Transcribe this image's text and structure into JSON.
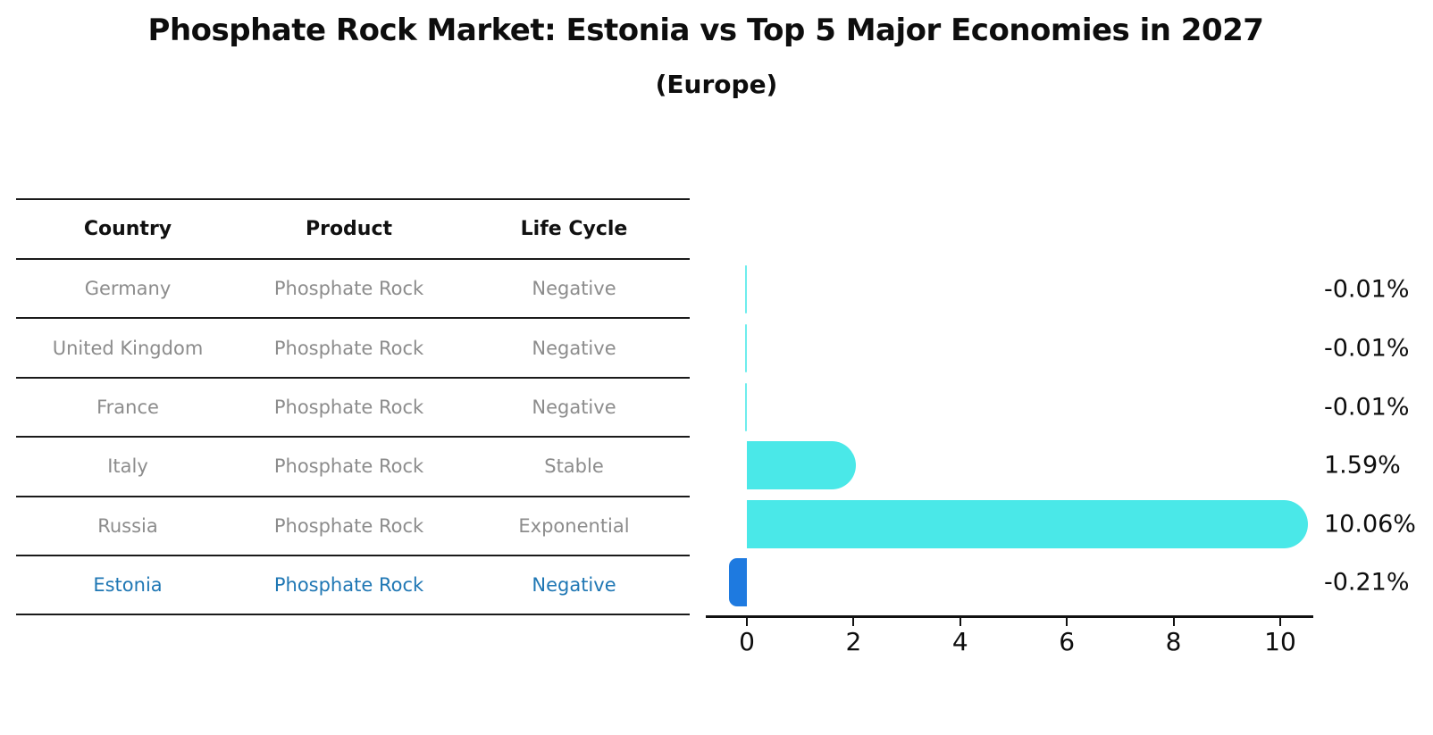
{
  "title": "Phosphate Rock Market: Estonia vs Top 5 Major Economies in 2027",
  "subtitle": "(Europe)",
  "table": {
    "headers": [
      "Country",
      "Product",
      "Life Cycle"
    ],
    "rows": [
      {
        "country": "Germany",
        "product": "Phosphate Rock",
        "life_cycle": "Negative",
        "highlight": false
      },
      {
        "country": "United Kingdom",
        "product": "Phosphate Rock",
        "life_cycle": "Negative",
        "highlight": false
      },
      {
        "country": "France",
        "product": "Phosphate Rock",
        "life_cycle": "Negative",
        "highlight": false
      },
      {
        "country": "Italy",
        "product": "Phosphate Rock",
        "life_cycle": "Stable",
        "highlight": false
      },
      {
        "country": "Russia",
        "product": "Phosphate Rock",
        "life_cycle": "Exponential",
        "highlight": false
      },
      {
        "country": "Estonia",
        "product": "Phosphate Rock",
        "life_cycle": "Negative",
        "highlight": true
      }
    ]
  },
  "chart_data": {
    "type": "bar",
    "orientation": "horizontal",
    "categories": [
      "Germany",
      "United Kingdom",
      "France",
      "Italy",
      "Russia",
      "Estonia"
    ],
    "values": [
      -0.01,
      -0.01,
      -0.01,
      1.59,
      10.06,
      -0.21
    ],
    "value_labels": [
      "-0.01%",
      "-0.01%",
      "-0.01%",
      "1.59%",
      "10.06%",
      "-0.21%"
    ],
    "xticks": [
      0,
      2,
      4,
      6,
      8,
      10
    ],
    "xlim": [
      -0.77,
      10.64
    ],
    "grid": false,
    "legend": false,
    "bar_style": "rounded-end",
    "value_unit": "%"
  },
  "colors": {
    "bar_cyan": "#4AE8E8",
    "bar_highlight_blue": "#1E7AE0",
    "highlight_text_blue": "#1F77B4",
    "table_text_gray": "#8C8C8C",
    "ink": "#111111"
  }
}
